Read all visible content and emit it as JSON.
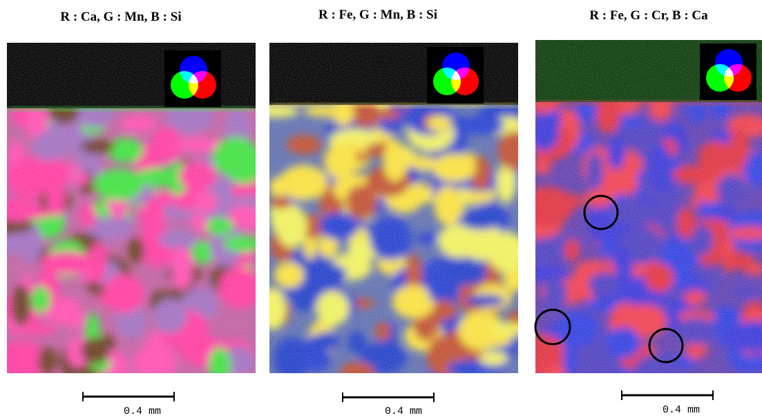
{
  "panels": [
    {
      "title": "R : Ca, G : Mn, B : Si",
      "scale_label": "0.4  mm"
    },
    {
      "title": "R : Fe, G : Mn, B : Si",
      "scale_label": "0.4  mm"
    },
    {
      "title": "R : Fe, G : Cr, B : Ca",
      "scale_label": "0.4  mm"
    }
  ]
}
